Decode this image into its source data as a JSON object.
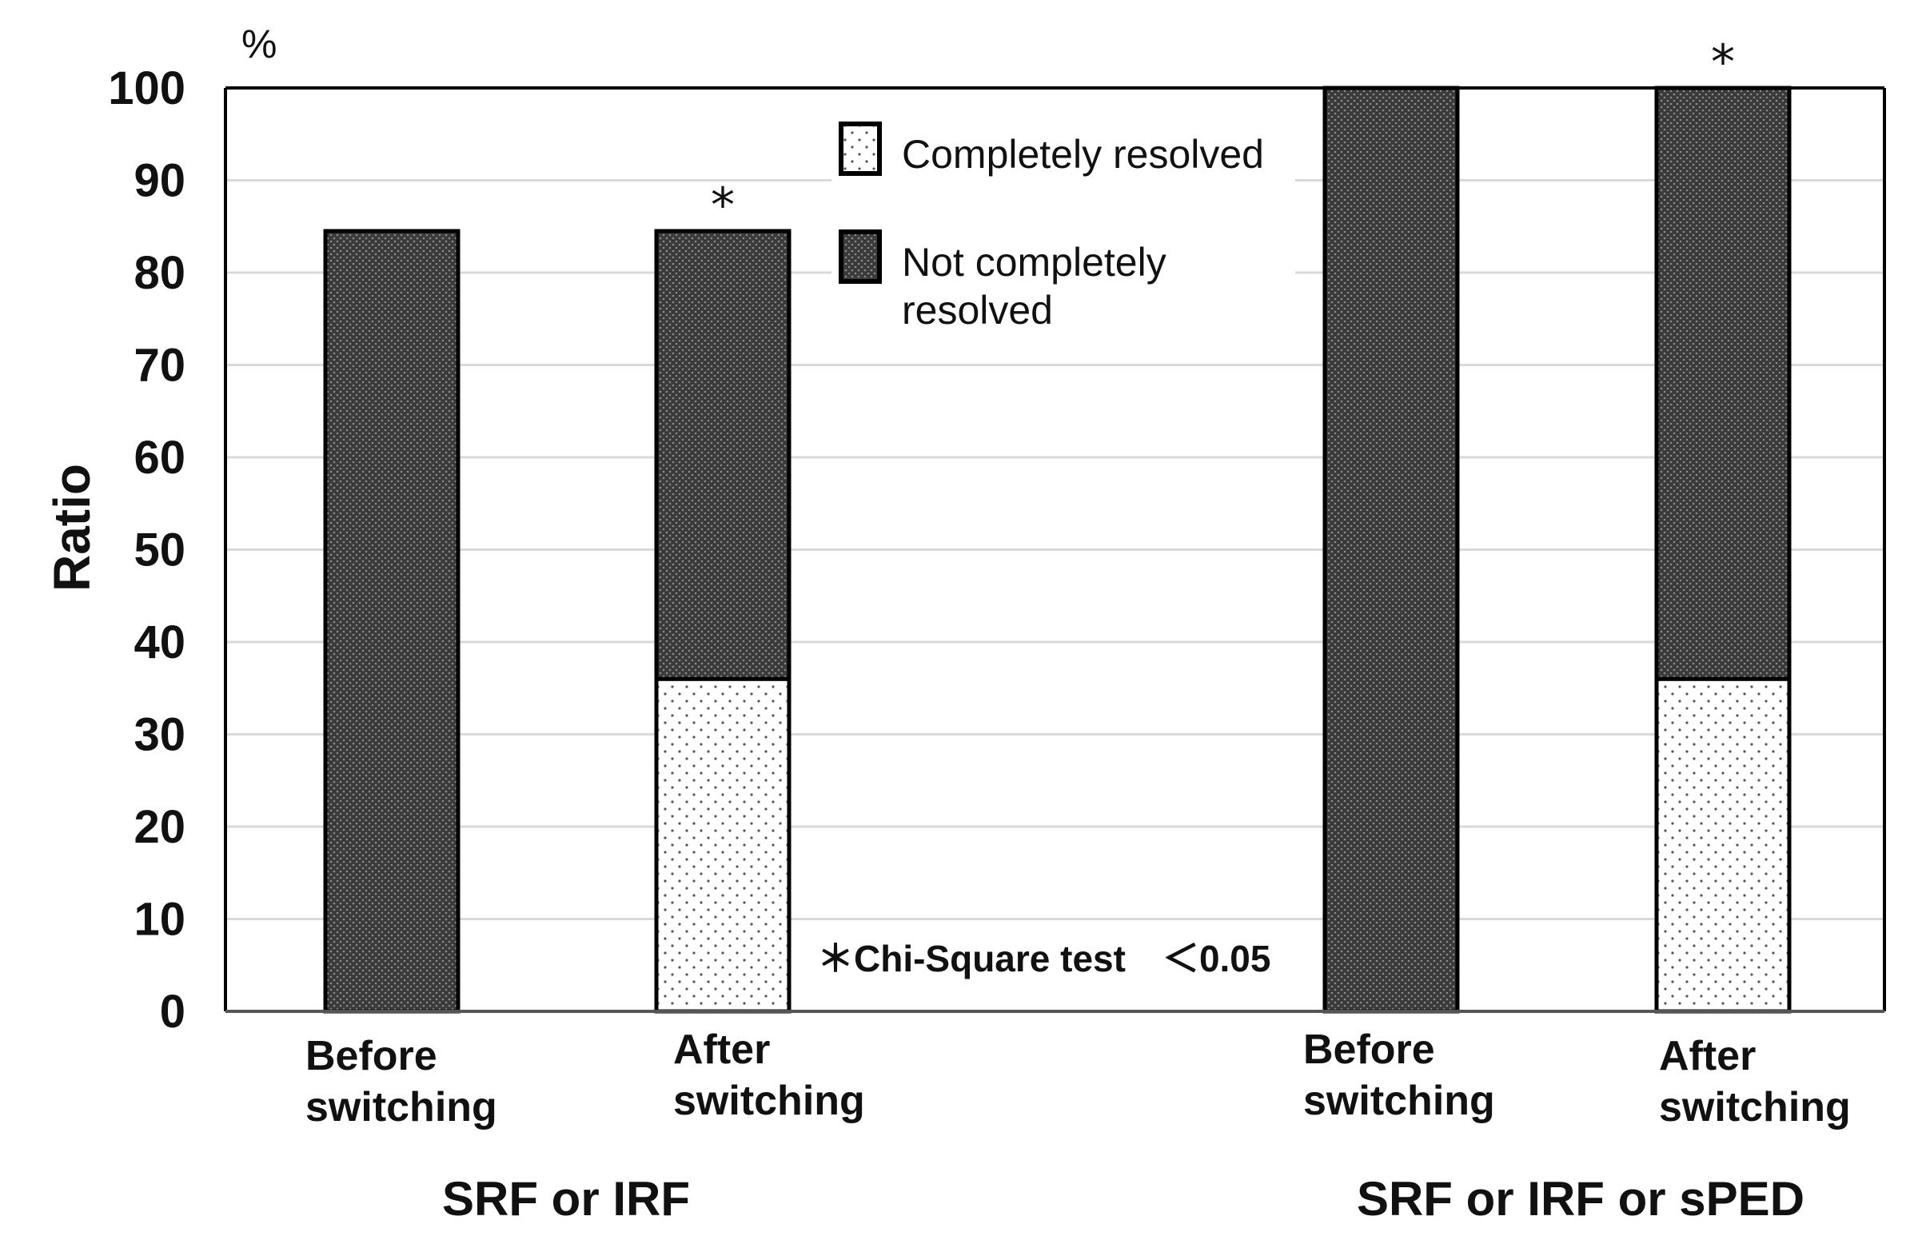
{
  "chart_data": {
    "type": "bar",
    "stacked": true,
    "ylabel": "Ratio",
    "y_unit": "%",
    "ylim": [
      0,
      100
    ],
    "yticks": [
      0,
      10,
      20,
      30,
      40,
      50,
      60,
      70,
      80,
      90,
      100
    ],
    "grid": true,
    "legend_position": "top-center",
    "groups": [
      {
        "label": "SRF or IRF",
        "categories": [
          {
            "label": [
              "Before",
              "switching"
            ],
            "marker": ""
          },
          {
            "label": [
              "After",
              "switching"
            ],
            "marker": "*"
          }
        ]
      },
      {
        "label": "SRF or IRF or sPED",
        "categories": [
          {
            "label": [
              "Before",
              "switching"
            ],
            "marker": ""
          },
          {
            "label": [
              "After",
              "switching"
            ],
            "marker": "*"
          }
        ]
      }
    ],
    "series": [
      {
        "name": "Completely resolved",
        "pattern": "light-dots",
        "values": [
          0,
          36,
          0,
          36
        ]
      },
      {
        "name": "Not completely resolved",
        "pattern": "dark-dots",
        "values": [
          84.5,
          48.5,
          100,
          64
        ]
      }
    ],
    "legend_labels": [
      [
        "Completely resolved"
      ],
      [
        "Not completely",
        "resolved"
      ]
    ],
    "annotation": "＊Chi-Square test　＜0.05",
    "colors": {
      "dark_fill": "#3a3a3a",
      "light_fill": "#ffffff",
      "grid": "#d9d9d9",
      "axis": "#000000"
    }
  }
}
